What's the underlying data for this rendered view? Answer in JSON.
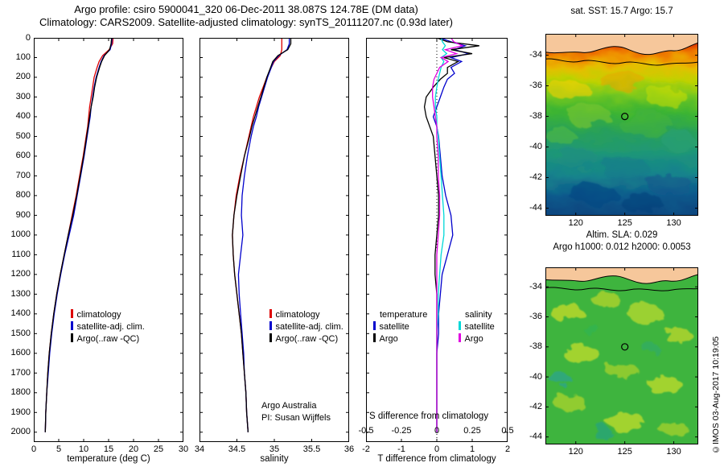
{
  "title": {
    "line1": "Argo profile: csiro 5900041_320 06-Dec-2011 38.087S 124.78E (DM data)",
    "line2": "Climatology: CARS2009. Satellite-adjusted climatology: synTS_20111207.nc (0.93d later)"
  },
  "colors": {
    "climatology": "#dd0000",
    "satellite_adj": "#0000cc",
    "argo": "#000000",
    "sal_satellite": "#00d8d8",
    "sal_argo": "#e000e0",
    "land": "#f6c79b"
  },
  "panels": {
    "temperature": {
      "xlabel": "temperature (deg C)",
      "legend": [
        "climatology",
        "satellite-adj. clim.",
        "Argo(..raw -QC)"
      ]
    },
    "salinity": {
      "xlabel": "salinity",
      "legend": [
        "climatology",
        "satellite-adj. clim.",
        "Argo(..raw -QC)"
      ],
      "annotation": [
        "Argo Australia",
        "PI: Susan Wijffels"
      ]
    },
    "difference": {
      "xlabel": "T difference from climatology",
      "s_axis_label": "S difference from climatology",
      "legend_temperature": {
        "header": "temperature",
        "items": [
          "satellite",
          "Argo"
        ]
      },
      "legend_salinity": {
        "header": "salinity",
        "items": [
          "satellite",
          "Argo"
        ]
      }
    }
  },
  "maps": {
    "sst": {
      "title": "sat. SST: 15.7 Argo: 15.7"
    },
    "sla": {
      "title1": "Altim. SLA: 0.029",
      "title2": "Argo h1000: 0.012 h2000: 0.0053"
    }
  },
  "watermark": "©IMOS 03-Aug-2017 10:19:05",
  "chart_data": [
    {
      "id": "temperature_profile",
      "type": "line",
      "title": "",
      "xlabel": "temperature (deg C)",
      "ylabel": "",
      "xlim": [
        0,
        30
      ],
      "ylim": [
        0,
        2050
      ],
      "y_inverted": true,
      "xticks": [
        0,
        5,
        10,
        15,
        20,
        25,
        30
      ],
      "yticks": [
        0,
        100,
        200,
        300,
        400,
        500,
        600,
        700,
        800,
        900,
        1000,
        1100,
        1200,
        1300,
        1400,
        1500,
        1600,
        1700,
        1800,
        1900,
        2000
      ],
      "depth": [
        0,
        30,
        60,
        90,
        120,
        150,
        200,
        250,
        300,
        350,
        400,
        450,
        500,
        600,
        700,
        800,
        900,
        1000,
        1100,
        1200,
        1300,
        1400,
        1500,
        1600,
        1700,
        1800,
        1900,
        2000
      ],
      "series": [
        {
          "name": "climatology",
          "color": "#dd0000",
          "values": [
            15.9,
            15.8,
            15.1,
            13.8,
            13.1,
            12.7,
            12.1,
            11.8,
            11.5,
            11.2,
            11.0,
            10.8,
            10.5,
            9.9,
            9.2,
            8.5,
            7.7,
            6.9,
            6.1,
            5.3,
            4.6,
            4.0,
            3.5,
            3.1,
            2.8,
            2.6,
            2.4,
            2.3
          ]
        },
        {
          "name": "satellite-adj. clim.",
          "color": "#0000cc",
          "values": [
            15.7,
            15.6,
            15.3,
            14.1,
            13.5,
            13.1,
            12.5,
            12.1,
            11.8,
            11.5,
            11.3,
            11.0,
            10.7,
            10.1,
            9.4,
            8.7,
            8.0,
            7.1,
            6.2,
            5.4,
            4.7,
            4.1,
            3.6,
            3.2,
            2.9,
            2.6,
            2.4,
            2.3
          ]
        },
        {
          "name": "Argo(..raw -QC)",
          "color": "#000000",
          "values": [
            15.6,
            15.5,
            15.2,
            14.2,
            13.6,
            13.2,
            12.6,
            12.2,
            11.9,
            11.5,
            11.2,
            10.9,
            10.6,
            10.0,
            9.3,
            8.6,
            7.8,
            6.9,
            6.1,
            5.3,
            4.6,
            4.0,
            3.5,
            3.1,
            2.8,
            2.6,
            2.4,
            2.3
          ]
        }
      ]
    },
    {
      "id": "salinity_profile",
      "type": "line",
      "title": "",
      "xlabel": "salinity",
      "ylabel": "",
      "xlim": [
        34,
        36
      ],
      "ylim": [
        0,
        2050
      ],
      "y_inverted": true,
      "xticks": [
        34,
        34.5,
        35,
        35.5,
        36
      ],
      "yticks": [
        0,
        100,
        200,
        300,
        400,
        500,
        600,
        700,
        800,
        900,
        1000,
        1100,
        1200,
        1300,
        1400,
        1500,
        1600,
        1700,
        1800,
        1900,
        2000
      ],
      "depth": [
        0,
        30,
        60,
        90,
        120,
        150,
        200,
        250,
        300,
        350,
        400,
        450,
        500,
        600,
        700,
        800,
        900,
        1000,
        1100,
        1200,
        1300,
        1400,
        1500,
        1600,
        1700,
        1800,
        1900,
        2000
      ],
      "series": [
        {
          "name": "climatology",
          "color": "#dd0000",
          "values": [
            35.1,
            35.1,
            35.1,
            35.08,
            35.0,
            34.96,
            34.9,
            34.85,
            34.8,
            34.76,
            34.72,
            34.69,
            34.66,
            34.6,
            34.54,
            34.49,
            34.46,
            34.44,
            34.45,
            34.47,
            34.5,
            34.53,
            34.56,
            34.58,
            34.6,
            34.62,
            34.63,
            34.65
          ]
        },
        {
          "name": "satellite-adj. clim.",
          "color": "#0000cc",
          "values": [
            35.2,
            35.2,
            35.17,
            35.06,
            34.99,
            34.96,
            34.91,
            34.87,
            34.83,
            34.79,
            34.76,
            34.72,
            34.69,
            34.64,
            34.6,
            34.57,
            34.56,
            34.58,
            34.55,
            34.52,
            34.53,
            34.55,
            34.57,
            34.59,
            34.6,
            34.62,
            34.63,
            34.65
          ]
        },
        {
          "name": "Argo(..raw -QC)",
          "color": "#000000",
          "values": [
            35.22,
            35.22,
            35.18,
            35.05,
            34.98,
            34.95,
            34.9,
            34.86,
            34.82,
            34.78,
            34.74,
            34.7,
            34.67,
            34.6,
            34.55,
            34.5,
            34.46,
            34.44,
            34.45,
            34.47,
            34.5,
            34.53,
            34.56,
            34.58,
            34.6,
            34.62,
            34.63,
            34.65
          ]
        }
      ]
    },
    {
      "id": "difference_profile",
      "type": "line",
      "title": "",
      "xlabel": "T difference from climatology",
      "s_axis_label": "S difference from climatology",
      "ylabel": "",
      "xlim": [
        -2,
        2
      ],
      "s_xlim": [
        -0.5,
        0.5
      ],
      "ylim": [
        0,
        2050
      ],
      "y_inverted": true,
      "zero_line": true,
      "xticks": [
        -2,
        -1,
        0,
        1,
        2
      ],
      "s_ticks": [
        -0.5,
        -0.25,
        0,
        0.25,
        0.5
      ],
      "yticks": [
        0,
        100,
        200,
        300,
        400,
        500,
        600,
        700,
        800,
        900,
        1000,
        1100,
        1200,
        1300,
        1400,
        1500,
        1600,
        1700,
        1800,
        1900,
        2000
      ],
      "depth": [
        0,
        20,
        40,
        60,
        80,
        100,
        120,
        150,
        180,
        210,
        250,
        300,
        350,
        400,
        450,
        500,
        600,
        700,
        800,
        900,
        1000,
        1100,
        1200,
        1300,
        1400,
        1500,
        1600,
        1700,
        1800,
        1900,
        2000
      ],
      "series": [
        {
          "name": "T satellite",
          "axis": "T",
          "color": "#0000cc",
          "values": [
            0.1,
            0.4,
            0.8,
            0.5,
            0.9,
            0.4,
            0.7,
            0.4,
            0.5,
            0.3,
            0.2,
            0.1,
            0.0,
            -0.1,
            0.0,
            0.05,
            0.1,
            0.15,
            0.25,
            0.4,
            0.45,
            0.3,
            0.15,
            0.1,
            0.05,
            0.05,
            0.0,
            0.0,
            0.0,
            0.0,
            0.0
          ]
        },
        {
          "name": "T Argo",
          "axis": "T",
          "color": "#000000",
          "values": [
            0.0,
            0.3,
            1.2,
            0.4,
            1.0,
            0.2,
            0.6,
            0.3,
            0.3,
            0.1,
            -0.1,
            -0.3,
            -0.35,
            -0.3,
            -0.2,
            -0.1,
            -0.05,
            0.0,
            0.05,
            0.05,
            0.0,
            -0.05,
            -0.05,
            0.0,
            0.0,
            0.0,
            0.0,
            0.0,
            0.0,
            0.0,
            0.0
          ]
        },
        {
          "name": "S satellite",
          "axis": "S",
          "color": "#00d8d8",
          "values": [
            0.03,
            0.04,
            0.06,
            0.04,
            0.07,
            0.03,
            0.05,
            0.03,
            0.02,
            0.01,
            0.0,
            -0.01,
            -0.01,
            0.0,
            0.0,
            0.01,
            0.02,
            0.03,
            0.04,
            0.05,
            0.05,
            0.03,
            0.02,
            0.01,
            0.01,
            0.0,
            0.0,
            0.0,
            0.0,
            0.0,
            0.0
          ]
        },
        {
          "name": "S Argo",
          "axis": "S",
          "color": "#e000e0",
          "values": [
            0.1,
            0.12,
            0.18,
            0.06,
            0.14,
            0.03,
            0.08,
            0.02,
            0.0,
            -0.02,
            -0.03,
            -0.03,
            -0.02,
            -0.01,
            0.0,
            0.0,
            0.01,
            0.01,
            0.02,
            0.02,
            0.01,
            0.0,
            0.0,
            0.0,
            0.0,
            0.0,
            0.0,
            0.0,
            0.0,
            0.0,
            0.0
          ]
        }
      ]
    },
    {
      "id": "sst_map",
      "type": "heatmap",
      "title": "sat. SST: 15.7 Argo: 15.7",
      "sat_sst": 15.7,
      "argo_sst": 15.7,
      "lon_range": [
        116.9,
        132.5
      ],
      "lat_range": [
        -32.6,
        -44.5
      ],
      "xticks": [
        120,
        125,
        130
      ],
      "yticks": [
        -34,
        -36,
        -38,
        -40,
        -42,
        -44
      ],
      "float_marker": {
        "lon": 125,
        "lat": -38
      }
    },
    {
      "id": "sla_map",
      "type": "heatmap",
      "title1": "Altim. SLA: 0.029",
      "title2": "Argo h1000: 0.012 h2000: 0.0053",
      "altim_sla": 0.029,
      "argo_h1000": 0.012,
      "argo_h2000": 0.0053,
      "lon_range": [
        116.9,
        132.5
      ],
      "lat_range": [
        -32.7,
        -44.5
      ],
      "xticks": [
        120,
        125,
        130
      ],
      "yticks": [
        -34,
        -36,
        -38,
        -40,
        -42,
        -44
      ],
      "float_marker": {
        "lon": 125,
        "lat": -38
      }
    }
  ]
}
